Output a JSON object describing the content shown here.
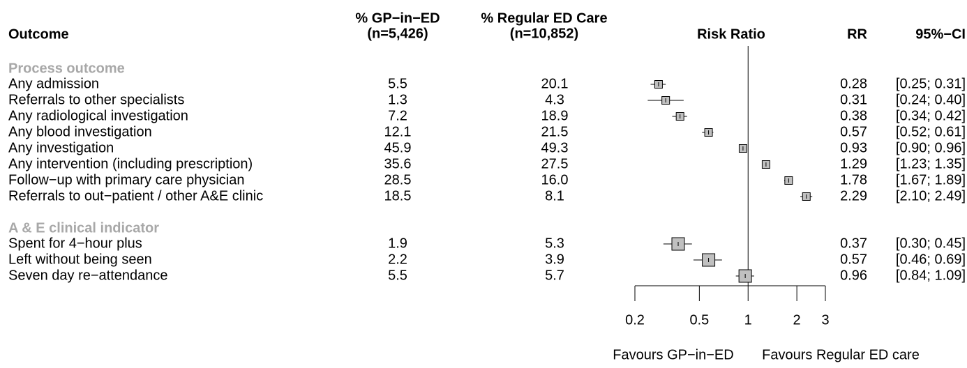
{
  "chart_data": {
    "type": "forest",
    "headers": {
      "outcome": "Outcome",
      "gp": [
        "% GP−in−ED",
        "(n=5,426)"
      ],
      "regular": [
        "% Regular ED Care",
        "(n=10,852)"
      ],
      "plot": "Risk Ratio",
      "rr": "RR",
      "ci": "95%−CI"
    },
    "groups": [
      {
        "name": "Process outcome",
        "rows": [
          {
            "outcome": "Any admission",
            "gp": "5.5",
            "regular": "20.1",
            "rr": 0.28,
            "ci": [
              0.25,
              0.31
            ],
            "ci_label": "[0.25; 0.31]"
          },
          {
            "outcome": "Referrals to other specialists",
            "gp": "1.3",
            "regular": "4.3",
            "rr": 0.31,
            "ci": [
              0.24,
              0.4
            ],
            "ci_label": "[0.24; 0.40]"
          },
          {
            "outcome": "Any radiological investigation",
            "gp": "7.2",
            "regular": "18.9",
            "rr": 0.38,
            "ci": [
              0.34,
              0.42
            ],
            "ci_label": "[0.34; 0.42]"
          },
          {
            "outcome": "Any blood investigation",
            "gp": "12.1",
            "regular": "21.5",
            "rr": 0.57,
            "ci": [
              0.52,
              0.61
            ],
            "ci_label": "[0.52; 0.61]"
          },
          {
            "outcome": "Any investigation",
            "gp": "45.9",
            "regular": "49.3",
            "rr": 0.93,
            "ci": [
              0.9,
              0.96
            ],
            "ci_label": "[0.90; 0.96]"
          },
          {
            "outcome": "Any intervention (including prescription)",
            "gp": "35.6",
            "regular": "27.5",
            "rr": 1.29,
            "ci": [
              1.23,
              1.35
            ],
            "ci_label": "[1.23; 1.35]"
          },
          {
            "outcome": "Follow−up with primary care physician",
            "gp": "28.5",
            "regular": "16.0",
            "rr": 1.78,
            "ci": [
              1.67,
              1.89
            ],
            "ci_label": "[1.67; 1.89]"
          },
          {
            "outcome": "Referrals to out−patient / other A&E clinic",
            "gp": "18.5",
            "regular": "8.1",
            "rr": 2.29,
            "ci": [
              2.1,
              2.49
            ],
            "ci_label": "[2.10; 2.49]"
          }
        ]
      },
      {
        "name": "A & E clinical indicator",
        "rows": [
          {
            "outcome": "Spent for 4−hour plus",
            "gp": "1.9",
            "regular": "5.3",
            "rr": 0.37,
            "ci": [
              0.3,
              0.45
            ],
            "ci_label": "[0.30; 0.45]"
          },
          {
            "outcome": "Left without being seen",
            "gp": "2.2",
            "regular": "3.9",
            "rr": 0.57,
            "ci": [
              0.46,
              0.69
            ],
            "ci_label": "[0.46; 0.69]"
          },
          {
            "outcome": "Seven day re−attendance",
            "gp": "5.5",
            "regular": "5.7",
            "rr": 0.96,
            "ci": [
              0.84,
              1.09
            ],
            "ci_label": "[0.84; 1.09]"
          }
        ]
      }
    ],
    "xlim": [
      0.2,
      3
    ],
    "xticks": [
      0.2,
      0.5,
      1,
      2,
      3
    ],
    "log_x": true,
    "reference_line": 1,
    "favours": [
      "Favours GP−in−ED",
      "Favours Regular ED care"
    ],
    "box_color": "#c0c0c0",
    "group_color": "#a8a8a8"
  }
}
